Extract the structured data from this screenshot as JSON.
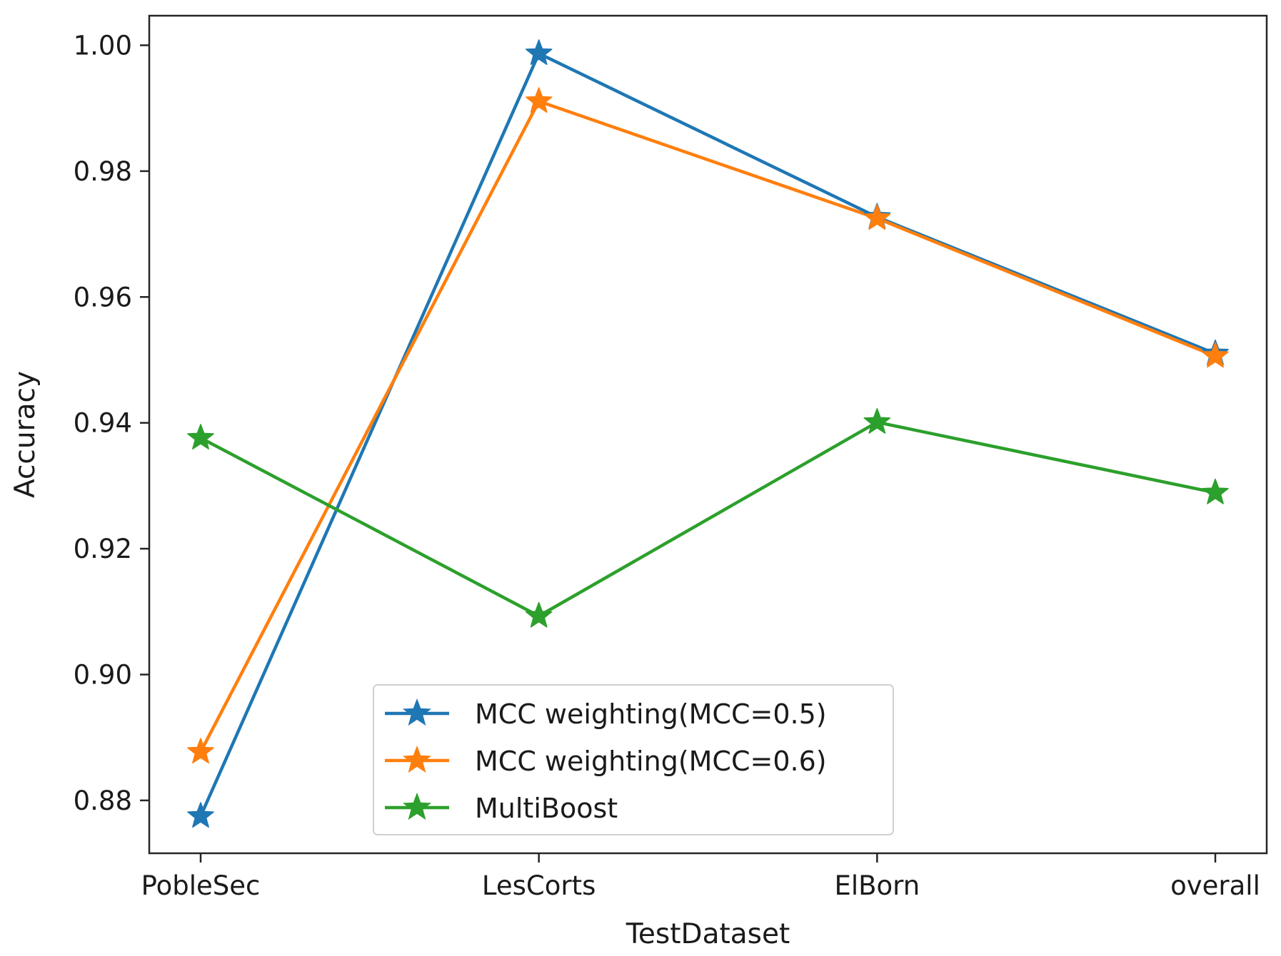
{
  "chart_data": {
    "type": "line",
    "title": "",
    "xlabel": "TestDataset",
    "ylabel": "Accuracy",
    "categories": [
      "PobleSec",
      "LesCorts",
      "ElBorn",
      "overall"
    ],
    "ylim": [
      0.8716,
      1.0047
    ],
    "yticks": [
      0.88,
      0.9,
      0.92,
      0.94,
      0.96,
      0.98,
      1.0
    ],
    "ytick_labels": [
      "0.88",
      "0.90",
      "0.92",
      "0.94",
      "0.96",
      "0.98",
      "1.00"
    ],
    "grid": false,
    "legend_position": "lower-center",
    "marker": "star",
    "series": [
      {
        "name": "MCC weighting(MCC=0.5)",
        "color": "#1f77b4",
        "values": [
          0.8775,
          0.9987,
          0.9727,
          0.951
        ]
      },
      {
        "name": "MCC weighting(MCC=0.6)",
        "color": "#ff7f0e",
        "values": [
          0.8877,
          0.9911,
          0.9725,
          0.9506
        ]
      },
      {
        "name": "MultiBoost",
        "color": "#2ca02c",
        "values": [
          0.9376,
          0.9093,
          0.9401,
          0.9289
        ]
      }
    ]
  }
}
